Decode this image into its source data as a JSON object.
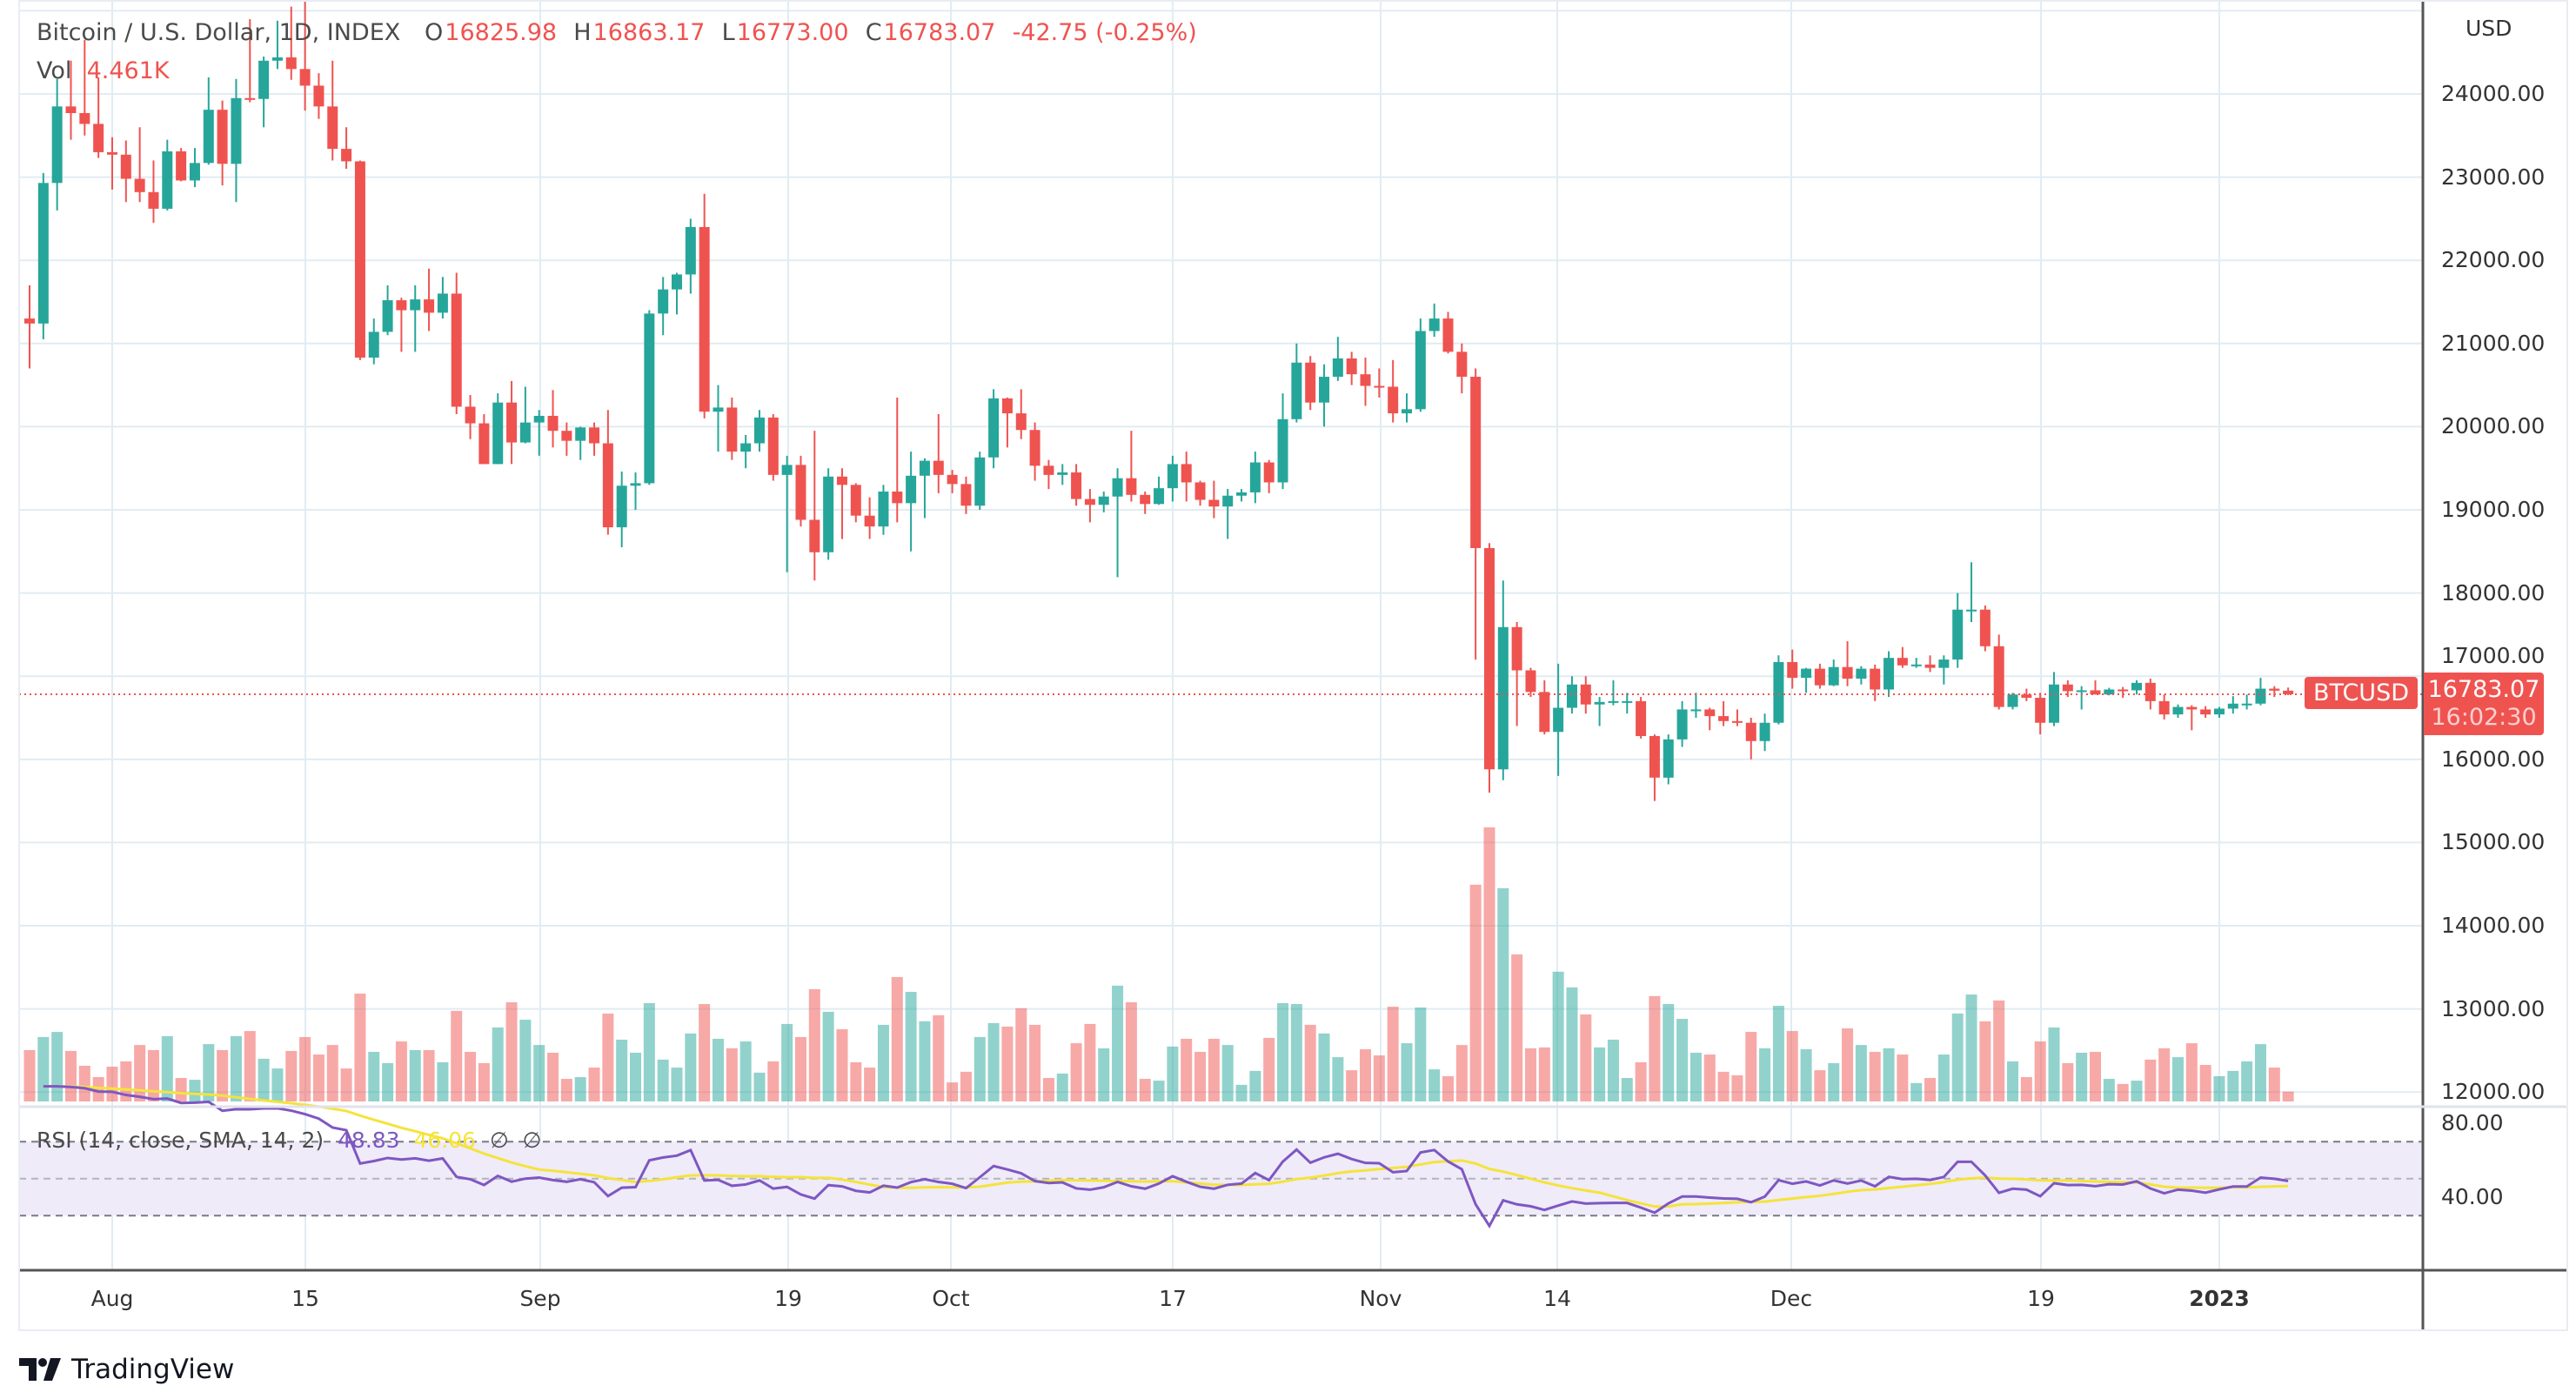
{
  "header": {
    "title": "Bitcoin / U.S. Dollar, 1D, INDEX",
    "open_label": "O",
    "open": "16825.98",
    "high_label": "H",
    "high": "16863.17",
    "low_label": "L",
    "low": "16773.00",
    "close_label": "C",
    "close": "16783.07",
    "change": "-42.75 (-0.25%)",
    "vol_label": "Vol",
    "vol": "4.461K"
  },
  "price_axis": {
    "currency": "USD",
    "ticks": [
      "24000.00",
      "23000.00",
      "22000.00",
      "21000.00",
      "20000.00",
      "19000.00",
      "18000.00",
      "17000.00",
      "16000.00",
      "15000.00",
      "14000.00",
      "13000.00",
      "12000.00"
    ]
  },
  "last_price": {
    "symbol": "BTCUSD",
    "price": "16783.07",
    "countdown": "16:02:30"
  },
  "rsi": {
    "label": "RSI (14, close, SMA, 14, 2)",
    "value": "48.83",
    "sma": "46.06",
    "extra1": "∅",
    "extra2": "∅",
    "ticks": [
      "80.00",
      "40.00"
    ],
    "upper_band": 70,
    "middle_band": 50,
    "lower_band": 30
  },
  "time_axis": {
    "labels": [
      "Aug",
      "15",
      "Sep",
      "19",
      "Oct",
      "17",
      "Nov",
      "14",
      "Dec",
      "19",
      "2023"
    ]
  },
  "colors": {
    "up": "#26a69a",
    "down": "#ef5350",
    "rsi": "#7e57c2",
    "rsi_sma": "#f5e33b",
    "band_fill": "#efebf8",
    "grid": "#e1ecf2"
  },
  "logo": {
    "text": "TradingView"
  },
  "chart_data": {
    "type": "candlestick",
    "title": "Bitcoin / U.S. Dollar, 1D, INDEX",
    "ylabel": "USD",
    "ylim": [
      11900,
      25200
    ],
    "volume_unit": "K",
    "x_tick_labels": [
      "Aug",
      "15",
      "Sep",
      "19",
      "Oct",
      "17",
      "Nov",
      "14",
      "Dec",
      "19",
      "2023"
    ],
    "fields": [
      "open",
      "high",
      "low",
      "close",
      "volume"
    ],
    "candles": [
      [
        21300,
        21700,
        20700,
        21240,
        23.2
      ],
      [
        21240,
        23050,
        21050,
        22930,
        29.1
      ],
      [
        22930,
        24180,
        22600,
        23850,
        31.4
      ],
      [
        23850,
        24400,
        23450,
        23770,
        22.8
      ],
      [
        23770,
        24650,
        23500,
        23640,
        16.1
      ],
      [
        23640,
        24200,
        23230,
        23300,
        11.0
      ],
      [
        23300,
        23480,
        22850,
        23270,
        15.7
      ],
      [
        23270,
        23440,
        22700,
        22980,
        18.1
      ],
      [
        22980,
        23600,
        22700,
        22820,
        25.5
      ],
      [
        22820,
        23200,
        22450,
        22620,
        23.2
      ],
      [
        22620,
        23450,
        22600,
        23310,
        29.5
      ],
      [
        23310,
        23350,
        22950,
        22960,
        10.6
      ],
      [
        22960,
        23350,
        22880,
        23170,
        9.8
      ],
      [
        23170,
        24200,
        23150,
        23810,
        25.9
      ],
      [
        23810,
        23920,
        22900,
        23160,
        23.2
      ],
      [
        23160,
        24180,
        22700,
        23950,
        29.5
      ],
      [
        23950,
        24900,
        23900,
        23940,
        31.8
      ],
      [
        23940,
        24450,
        23600,
        24400,
        19.3
      ],
      [
        24400,
        24880,
        24300,
        24440,
        14.9
      ],
      [
        24440,
        25050,
        24170,
        24300,
        22.8
      ],
      [
        24300,
        25200,
        23800,
        24100,
        29.1
      ],
      [
        24100,
        24250,
        23700,
        23850,
        21.2
      ],
      [
        23850,
        24400,
        23200,
        23340,
        25.5
      ],
      [
        23340,
        23600,
        23100,
        23190,
        14.9
      ],
      [
        23190,
        23200,
        20800,
        20830,
        48.7
      ],
      [
        20830,
        21300,
        20750,
        21140,
        22.4
      ],
      [
        21140,
        21700,
        21100,
        21520,
        17.3
      ],
      [
        21520,
        21550,
        20900,
        21400,
        27.1
      ],
      [
        21400,
        21700,
        20900,
        21530,
        23.2
      ],
      [
        21530,
        21900,
        21150,
        21370,
        23.2
      ],
      [
        21370,
        21800,
        21300,
        21600,
        17.7
      ],
      [
        21600,
        21850,
        20150,
        20240,
        40.9
      ],
      [
        20240,
        20380,
        19850,
        20040,
        22.4
      ],
      [
        20040,
        20150,
        19550,
        19550,
        17.3
      ],
      [
        19550,
        20400,
        19550,
        20290,
        33.4
      ],
      [
        20290,
        20550,
        19550,
        19810,
        44.8
      ],
      [
        19810,
        20480,
        19800,
        20050,
        36.9
      ],
      [
        20050,
        20200,
        19650,
        20130,
        25.5
      ],
      [
        20130,
        20440,
        19750,
        19950,
        22.0
      ],
      [
        19950,
        20050,
        19650,
        19830,
        10.2
      ],
      [
        19830,
        20000,
        19600,
        19990,
        11.0
      ],
      [
        19990,
        20050,
        19650,
        19800,
        15.3
      ],
      [
        19800,
        20200,
        18700,
        18790,
        39.7
      ],
      [
        18790,
        19460,
        18550,
        19290,
        27.9
      ],
      [
        19290,
        19450,
        19000,
        19320,
        22.0
      ],
      [
        19320,
        21400,
        19300,
        21360,
        44.4
      ],
      [
        21360,
        21800,
        21100,
        21650,
        18.9
      ],
      [
        21650,
        21850,
        21350,
        21830,
        15.3
      ],
      [
        21830,
        22500,
        21600,
        22400,
        30.7
      ],
      [
        22400,
        22800,
        20100,
        20180,
        44.0
      ],
      [
        20180,
        20500,
        19700,
        20230,
        28.3
      ],
      [
        20230,
        20350,
        19600,
        19700,
        24.0
      ],
      [
        19700,
        19900,
        19500,
        19800,
        27.1
      ],
      [
        19800,
        20200,
        19700,
        20110,
        13.0
      ],
      [
        20110,
        20150,
        19350,
        19420,
        18.1
      ],
      [
        19420,
        19650,
        18250,
        19540,
        35.0
      ],
      [
        19540,
        19650,
        18800,
        18880,
        29.1
      ],
      [
        18880,
        19950,
        18150,
        18490,
        50.7
      ],
      [
        18490,
        19500,
        18400,
        19400,
        40.5
      ],
      [
        19400,
        19500,
        18650,
        19300,
        32.6
      ],
      [
        19300,
        19320,
        18850,
        18930,
        17.7
      ],
      [
        18930,
        19150,
        18650,
        18800,
        15.3
      ],
      [
        18800,
        19300,
        18700,
        19220,
        34.6
      ],
      [
        19220,
        20350,
        18850,
        19080,
        56.2
      ],
      [
        19080,
        19700,
        18500,
        19410,
        49.5
      ],
      [
        19410,
        19620,
        18900,
        19590,
        36.2
      ],
      [
        19590,
        20150,
        19200,
        19420,
        38.9
      ],
      [
        19420,
        19480,
        19200,
        19310,
        8.6
      ],
      [
        19310,
        19400,
        18950,
        19050,
        13.4
      ],
      [
        19050,
        19700,
        19000,
        19630,
        29.1
      ],
      [
        19630,
        20450,
        19500,
        20340,
        35.4
      ],
      [
        20340,
        20350,
        19750,
        20160,
        33.8
      ],
      [
        20160,
        20450,
        19850,
        19960,
        42.1
      ],
      [
        19960,
        20050,
        19350,
        19530,
        34.6
      ],
      [
        19530,
        19600,
        19250,
        19420,
        10.6
      ],
      [
        19420,
        19550,
        19300,
        19450,
        12.6
      ],
      [
        19450,
        19550,
        19050,
        19130,
        26.3
      ],
      [
        19130,
        19250,
        18850,
        19060,
        35.0
      ],
      [
        19060,
        19220,
        18970,
        19160,
        24.0
      ],
      [
        19160,
        19500,
        18190,
        19380,
        52.3
      ],
      [
        19380,
        19950,
        19100,
        19180,
        44.8
      ],
      [
        19180,
        19220,
        18950,
        19070,
        10.2
      ],
      [
        19070,
        19400,
        19060,
        19260,
        9.4
      ],
      [
        19260,
        19650,
        19100,
        19550,
        24.8
      ],
      [
        19550,
        19700,
        19100,
        19330,
        28.3
      ],
      [
        19330,
        19350,
        19050,
        19120,
        22.4
      ],
      [
        19120,
        19350,
        18900,
        19040,
        28.3
      ],
      [
        19040,
        19250,
        18650,
        19170,
        25.5
      ],
      [
        19170,
        19250,
        19100,
        19210,
        7.5
      ],
      [
        19210,
        19700,
        19080,
        19570,
        13.8
      ],
      [
        19570,
        19600,
        19200,
        19330,
        28.7
      ],
      [
        19330,
        20400,
        19250,
        20090,
        44.4
      ],
      [
        20090,
        21000,
        20050,
        20770,
        44.0
      ],
      [
        20770,
        20850,
        20200,
        20290,
        34.6
      ],
      [
        20290,
        20750,
        20000,
        20600,
        30.7
      ],
      [
        20600,
        21080,
        20550,
        20820,
        20.0
      ],
      [
        20820,
        20900,
        20500,
        20630,
        14.1
      ],
      [
        20630,
        20830,
        20250,
        20490,
        23.6
      ],
      [
        20490,
        20700,
        20350,
        20480,
        20.8
      ],
      [
        20480,
        20800,
        20050,
        20160,
        42.8
      ],
      [
        20160,
        20400,
        20050,
        20210,
        26.3
      ],
      [
        20210,
        21300,
        20180,
        21150,
        42.4
      ],
      [
        21150,
        21480,
        21080,
        21300,
        14.5
      ],
      [
        21300,
        21380,
        20880,
        20900,
        11.4
      ],
      [
        20900,
        21000,
        20400,
        20600,
        25.5
      ],
      [
        20600,
        20700,
        17200,
        18540,
        97.9
      ],
      [
        18540,
        18600,
        15600,
        15880,
        123.8
      ],
      [
        15880,
        18150,
        15750,
        17590,
        96.3
      ],
      [
        17590,
        17650,
        16400,
        17070,
        66.4
      ],
      [
        17070,
        17100,
        16750,
        16810,
        24.0
      ],
      [
        16810,
        16950,
        16300,
        16330,
        24.4
      ],
      [
        16330,
        17150,
        15800,
        16620,
        58.6
      ],
      [
        16620,
        17000,
        16550,
        16900,
        51.5
      ],
      [
        16900,
        17000,
        16550,
        16660,
        39.3
      ],
      [
        16660,
        16750,
        16400,
        16690,
        24.4
      ],
      [
        16690,
        16950,
        16650,
        16700,
        27.9
      ],
      [
        16700,
        16800,
        16550,
        16700,
        10.6
      ],
      [
        16700,
        16750,
        16250,
        16280,
        17.7
      ],
      [
        16280,
        16300,
        15500,
        15780,
        47.6
      ],
      [
        15780,
        16300,
        15700,
        16240,
        44.0
      ],
      [
        16240,
        16700,
        16150,
        16600,
        37.3
      ],
      [
        16600,
        16800,
        16500,
        16600,
        22.0
      ],
      [
        16600,
        16620,
        16350,
        16520,
        21.2
      ],
      [
        16520,
        16700,
        16400,
        16460,
        13.4
      ],
      [
        16460,
        16600,
        16400,
        16440,
        11.8
      ],
      [
        16440,
        16500,
        16000,
        16220,
        31.4
      ],
      [
        16220,
        16550,
        16100,
        16440,
        24.0
      ],
      [
        16440,
        17250,
        16420,
        17170,
        43.2
      ],
      [
        17170,
        17320,
        16850,
        16980,
        31.8
      ],
      [
        16980,
        17100,
        16800,
        17090,
        23.6
      ],
      [
        17090,
        17150,
        16850,
        16890,
        14.1
      ],
      [
        16890,
        17200,
        16880,
        17110,
        17.3
      ],
      [
        17110,
        17420,
        16880,
        16970,
        33.0
      ],
      [
        16970,
        17120,
        16900,
        17090,
        25.5
      ],
      [
        17090,
        17140,
        16700,
        16840,
        22.4
      ],
      [
        16840,
        17300,
        16750,
        17220,
        24.0
      ],
      [
        17220,
        17350,
        17100,
        17130,
        21.2
      ],
      [
        17130,
        17220,
        17100,
        17140,
        8.3
      ],
      [
        17140,
        17250,
        17050,
        17100,
        10.6
      ],
      [
        17100,
        17250,
        16900,
        17200,
        21.2
      ],
      [
        17200,
        18000,
        17100,
        17800,
        39.7
      ],
      [
        17800,
        18370,
        17650,
        17800,
        48.3
      ],
      [
        17800,
        17850,
        17300,
        17360,
        36.2
      ],
      [
        17360,
        17500,
        16600,
        16630,
        45.6
      ],
      [
        16630,
        16800,
        16600,
        16780,
        18.1
      ],
      [
        16780,
        16850,
        16700,
        16740,
        11.0
      ],
      [
        16740,
        16800,
        16300,
        16440,
        27.1
      ],
      [
        16440,
        17050,
        16400,
        16900,
        33.4
      ],
      [
        16900,
        16950,
        16750,
        16820,
        17.3
      ],
      [
        16820,
        16880,
        16600,
        16830,
        22.0
      ],
      [
        16830,
        16950,
        16780,
        16780,
        22.4
      ],
      [
        16780,
        16860,
        16770,
        16840,
        10.2
      ],
      [
        16840,
        16870,
        16740,
        16830,
        7.9
      ],
      [
        16830,
        16950,
        16780,
        16920,
        9.4
      ],
      [
        16920,
        16970,
        16600,
        16700,
        18.9
      ],
      [
        16700,
        16780,
        16480,
        16540,
        24.0
      ],
      [
        16540,
        16660,
        16500,
        16630,
        20.0
      ],
      [
        16630,
        16650,
        16350,
        16600,
        26.3
      ],
      [
        16600,
        16640,
        16500,
        16540,
        16.5
      ],
      [
        16540,
        16630,
        16500,
        16610,
        11.4
      ],
      [
        16610,
        16760,
        16550,
        16670,
        13.8
      ],
      [
        16670,
        16780,
        16600,
        16670,
        18.1
      ],
      [
        16670,
        16980,
        16650,
        16850,
        25.9
      ],
      [
        16850,
        16880,
        16750,
        16825.98,
        15.3
      ],
      [
        16825.98,
        16863.17,
        16773,
        16783.07,
        4.461
      ]
    ]
  }
}
